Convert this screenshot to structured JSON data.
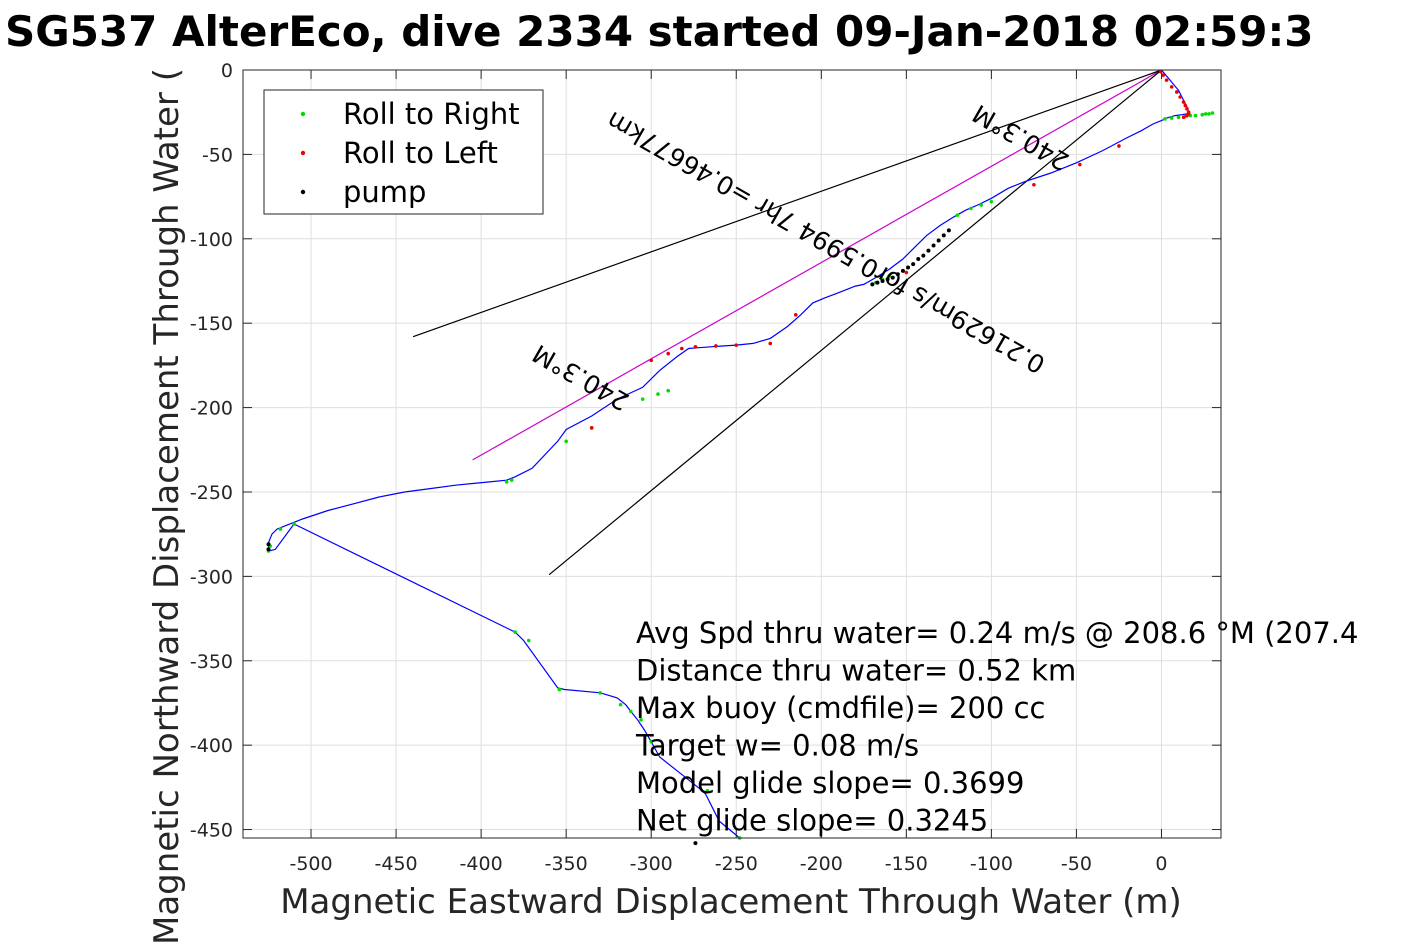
{
  "chart_data": {
    "type": "line",
    "title": "SG537 AlterEco, dive 2334 started 09-Jan-2018 02:59:3",
    "xlabel": "Magnetic Eastward Displacement Through Water (m)",
    "ylabel": "Magnetic Northward Displacement Through Water (",
    "xlim": [
      -540,
      35
    ],
    "ylim": [
      -455,
      0
    ],
    "xticks": [
      -500,
      -450,
      -400,
      -350,
      -300,
      -250,
      -200,
      -150,
      -100,
      -50,
      0
    ],
    "yticks": [
      0,
      -50,
      -100,
      -150,
      -200,
      -250,
      -300,
      -350,
      -400,
      -450
    ],
    "grid": true,
    "legend": {
      "placement": "top-left",
      "entries": [
        {
          "label": "Roll to Right",
          "color": "#00dd00"
        },
        {
          "label": "Roll to Left",
          "color": "#ee0000"
        },
        {
          "label": "pump",
          "color": "#000000"
        }
      ]
    },
    "track": {
      "color": "#0000ff",
      "x": [
        0,
        5,
        10,
        13,
        15,
        16,
        15,
        12,
        8,
        3,
        0,
        -5,
        -12,
        -20,
        -35,
        -50,
        -65,
        -80,
        -90,
        -100,
        -108,
        -115,
        -122,
        -130,
        -138,
        -145,
        -152,
        -160,
        -168,
        -175,
        -180,
        -190,
        -198,
        -205,
        -212,
        -220,
        -230,
        -240,
        -250,
        -258,
        -265,
        -272,
        -278,
        -285,
        -295,
        -305,
        -320,
        -335,
        -350,
        -355,
        -370,
        -380,
        -385,
        -395,
        -405,
        -415,
        -430,
        -445,
        -460,
        -475,
        -490,
        -505,
        -515,
        -520,
        -523,
        -525,
        -525,
        -521,
        -510,
        -380,
        -375,
        -355,
        -351,
        -330,
        -320,
        -315,
        -312,
        -308,
        -304,
        -300,
        -295,
        -280,
        -270,
        -268,
        -265,
        -260,
        -248
      ],
      "y": [
        0,
        -6,
        -12,
        -18,
        -22,
        -25,
        -26,
        -26.5,
        -27,
        -28.5,
        -30,
        -32,
        -36,
        -40,
        -48,
        -55,
        -61,
        -66,
        -70,
        -76,
        -80,
        -83,
        -87,
        -92,
        -98,
        -105,
        -112,
        -118,
        -123,
        -127,
        -128,
        -132,
        -135,
        -138,
        -145,
        -152,
        -159,
        -162,
        -163,
        -163.5,
        -164,
        -164.5,
        -165,
        -170,
        -178,
        -188,
        -195,
        -205,
        -213,
        -220,
        -236,
        -241,
        -243,
        -244,
        -245,
        -246,
        -248,
        -250,
        -253,
        -257,
        -261,
        -266,
        -270,
        -272,
        -275,
        -280,
        -285,
        -284,
        -269,
        -333,
        -338,
        -366,
        -367,
        -369,
        -372,
        -376,
        -380,
        -385,
        -391,
        -398,
        -407,
        -419,
        -427,
        -429,
        -435,
        -445,
        -455
      ]
    },
    "roll_right_points": {
      "color": "#00dd00",
      "x": [
        2,
        6,
        10,
        14,
        17,
        20,
        24,
        26,
        28,
        30,
        -100,
        -106,
        -112,
        -120,
        -160,
        -164,
        -168,
        -290,
        -296,
        -305,
        -335,
        -350,
        -382,
        -385,
        -510,
        -518,
        -524,
        -525,
        -380,
        -372,
        -354,
        -330,
        -318,
        -312,
        -306,
        -300,
        -267,
        -248
      ],
      "y": [
        -29,
        -28.5,
        -28,
        -27.5,
        -27,
        -27,
        -26.5,
        -26,
        -26,
        -25.5,
        -78,
        -80,
        -82,
        -86,
        -122,
        -124,
        -126,
        -190,
        -192,
        -195,
        -212,
        -220,
        -243,
        -244,
        -269,
        -272,
        -282,
        -285,
        -333,
        -338,
        -367,
        -369,
        -376,
        -380,
        -385,
        -398,
        -427,
        -455
      ]
    },
    "roll_left_points": {
      "color": "#ee0000",
      "x": [
        -0.5,
        1,
        3,
        6,
        9,
        11,
        13,
        14,
        15,
        16,
        16,
        15,
        13,
        -25,
        -48,
        -75,
        -150,
        -215,
        -230,
        -250,
        -262,
        -274,
        -282,
        -290,
        -300,
        -335
      ],
      "y": [
        -1,
        -3,
        -6,
        -10,
        -13,
        -16,
        -19,
        -21,
        -23,
        -25,
        -26,
        -27,
        -28,
        -45,
        -56,
        -68,
        -120,
        -145,
        -162,
        -163,
        -163.5,
        -164,
        -165,
        -168,
        -172,
        -212
      ]
    },
    "pump_points": {
      "color": "#000000",
      "x": [
        -125,
        -128,
        -131,
        -134,
        -137,
        -140,
        -143,
        -146,
        -149,
        -152,
        -155,
        -158,
        -161,
        -164,
        -167,
        -170,
        -525,
        -525,
        -274
      ],
      "y": [
        -95,
        -98,
        -101,
        -104,
        -107,
        -110,
        -112,
        -115,
        -117,
        -119,
        -121,
        -123,
        -124,
        -125,
        -126,
        -127,
        -281,
        -284,
        -458
      ]
    },
    "reference_lines": [
      {
        "name": "direct",
        "color": "#cc00cc",
        "x": [
          0,
          -405
        ],
        "y": [
          0,
          -231
        ]
      },
      {
        "name": "heading_wedge_top",
        "color": "#000000",
        "x": [
          0,
          -440
        ],
        "y": [
          0,
          -158
        ]
      },
      {
        "name": "heading_wedge_bottom",
        "color": "#000000",
        "x": [
          0,
          -360
        ],
        "y": [
          0,
          -299
        ]
      }
    ],
    "rotated_annotations": {
      "line1": "0.21629m/s for0.5994 7hr =0.46677km",
      "line2": "240.3°M",
      "line3": "240.3°M"
    },
    "info_lines": [
      "Avg Spd thru water=  0.24 m/s @ 208.6 °M (207.4",
      "Distance thru water=  0.52 km",
      "Max buoy (cmdfile)= 200 cc",
      "Target w= 0.08 m/s",
      "Model glide slope= 0.3699",
      "Net glide slope= 0.3245"
    ]
  }
}
